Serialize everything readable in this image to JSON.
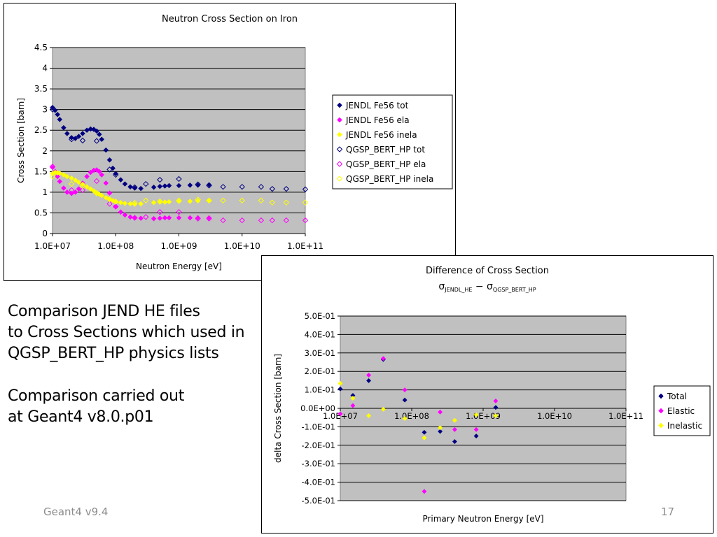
{
  "slide": {
    "text_lines": [
      "Comparison JEND HE files",
      "to Cross Sections which used in",
      "QGSP_BERT_HP physics lists",
      "Comparison carried out",
      "at Geant4 v8.0.p01"
    ],
    "footer_left": "Geant4 v9.4",
    "page_number": "17"
  },
  "chart_data": [
    {
      "type": "scatter",
      "title": "Neutron Cross Section on Iron",
      "xlabel": "Neutron Energy [eV]",
      "ylabel": "Cross Section [barn]",
      "x_scale": "log",
      "xlim": [
        10000000.0,
        100000000000.0
      ],
      "ylim": [
        0,
        4.5
      ],
      "x_tick_labels": [
        "1.0E+07",
        "1.0E+08",
        "1.0E+09",
        "1.0E+10",
        "1.0E+11"
      ],
      "y_tick_labels": [
        "0",
        "0.5",
        "1",
        "1.5",
        "2",
        "2.5",
        "3",
        "3.5",
        "4",
        "4.5"
      ],
      "plot_background": "#c0c0c0",
      "grid": "horizontal",
      "legend_position": "right",
      "series": [
        {
          "name": "JENDL Fe56 tot",
          "marker": "filled-diamond",
          "color": "#000080",
          "x": [
            10000000.0,
            11000000.0,
            12000000.0,
            13000000.0,
            15000000.0,
            17000000.0,
            20000000.0,
            23000000.0,
            26000000.0,
            30000000.0,
            35000000.0,
            40000000.0,
            45000000.0,
            50000000.0,
            55000000.0,
            60000000.0,
            70000000.0,
            80000000.0,
            90000000.0,
            100000000.0,
            120000000.0,
            140000000.0,
            170000000.0,
            200000000.0,
            250000000.0,
            400000000.0,
            500000000.0,
            600000000.0,
            700000000.0,
            1000000000.0,
            1500000000.0,
            2000000000.0,
            3000000000.0
          ],
          "y": [
            3.05,
            2.98,
            2.88,
            2.76,
            2.56,
            2.42,
            2.32,
            2.3,
            2.35,
            2.42,
            2.5,
            2.53,
            2.52,
            2.48,
            2.4,
            2.28,
            2.02,
            1.78,
            1.58,
            1.45,
            1.3,
            1.2,
            1.13,
            1.1,
            1.09,
            1.12,
            1.14,
            1.15,
            1.16,
            1.16,
            1.17,
            1.17,
            1.18
          ]
        },
        {
          "name": "JENDL Fe56 ela",
          "marker": "filled-diamond",
          "color": "#ff00ff",
          "x": [
            10000000.0,
            11000000.0,
            12000000.0,
            13000000.0,
            15000000.0,
            17000000.0,
            20000000.0,
            23000000.0,
            26000000.0,
            30000000.0,
            35000000.0,
            40000000.0,
            45000000.0,
            50000000.0,
            55000000.0,
            60000000.0,
            70000000.0,
            80000000.0,
            90000000.0,
            100000000.0,
            120000000.0,
            140000000.0,
            170000000.0,
            200000000.0,
            250000000.0,
            400000000.0,
            500000000.0,
            600000000.0,
            700000000.0,
            1000000000.0,
            1500000000.0,
            2000000000.0,
            3000000000.0
          ],
          "y": [
            1.6,
            1.5,
            1.38,
            1.26,
            1.1,
            1.0,
            0.97,
            1.0,
            1.08,
            1.22,
            1.38,
            1.48,
            1.53,
            1.54,
            1.5,
            1.42,
            1.22,
            0.98,
            0.8,
            0.66,
            0.52,
            0.45,
            0.4,
            0.38,
            0.37,
            0.36,
            0.37,
            0.38,
            0.38,
            0.38,
            0.38,
            0.38,
            0.38
          ]
        },
        {
          "name": "JENDL Fe56 inela",
          "marker": "filled-diamond",
          "color": "#ffff00",
          "x": [
            10000000.0,
            11000000.0,
            12000000.0,
            13000000.0,
            15000000.0,
            17000000.0,
            20000000.0,
            23000000.0,
            26000000.0,
            30000000.0,
            35000000.0,
            40000000.0,
            45000000.0,
            50000000.0,
            55000000.0,
            60000000.0,
            70000000.0,
            80000000.0,
            90000000.0,
            100000000.0,
            120000000.0,
            140000000.0,
            170000000.0,
            200000000.0,
            250000000.0,
            400000000.0,
            500000000.0,
            600000000.0,
            700000000.0,
            1000000000.0,
            1500000000.0,
            2000000000.0,
            3000000000.0
          ],
          "y": [
            1.45,
            1.48,
            1.47,
            1.46,
            1.42,
            1.38,
            1.34,
            1.29,
            1.24,
            1.19,
            1.13,
            1.08,
            1.03,
            0.99,
            0.95,
            0.92,
            0.87,
            0.83,
            0.8,
            0.78,
            0.75,
            0.73,
            0.72,
            0.71,
            0.72,
            0.75,
            0.76,
            0.76,
            0.77,
            0.78,
            0.78,
            0.79,
            0.79
          ]
        },
        {
          "name": "QGSP_BERT_HP tot",
          "marker": "hollow-diamond",
          "color": "#000080",
          "x": [
            10000000.0,
            20000000.0,
            30000000.0,
            50000000.0,
            80000000.0,
            100000000.0,
            200000000.0,
            300000000.0,
            500000000.0,
            1000000000.0,
            2000000000.0,
            3000000000.0,
            5000000000.0,
            10000000000.0,
            20000000000.0,
            30000000000.0,
            50000000000.0,
            100000000000.0
          ],
          "y": [
            3.0,
            2.28,
            2.25,
            2.24,
            1.55,
            1.42,
            1.12,
            1.2,
            1.3,
            1.32,
            1.19,
            1.16,
            1.13,
            1.13,
            1.13,
            1.08,
            1.08,
            1.07
          ]
        },
        {
          "name": "QGSP_BERT_HP ela",
          "marker": "hollow-diamond",
          "color": "#ff00ff",
          "x": [
            10000000.0,
            20000000.0,
            30000000.0,
            50000000.0,
            80000000.0,
            100000000.0,
            200000000.0,
            300000000.0,
            500000000.0,
            1000000000.0,
            2000000000.0,
            3000000000.0,
            5000000000.0,
            10000000000.0,
            20000000000.0,
            30000000000.0,
            50000000000.0,
            100000000000.0
          ],
          "y": [
            1.62,
            1.05,
            1.05,
            1.27,
            0.72,
            0.65,
            0.38,
            0.4,
            0.52,
            0.52,
            0.36,
            0.36,
            0.32,
            0.32,
            0.32,
            0.32,
            0.32,
            0.32
          ]
        },
        {
          "name": "QGSP_BERT_HP inela",
          "marker": "hollow-diamond",
          "color": "#ffff00",
          "x": [
            10000000.0,
            20000000.0,
            30000000.0,
            50000000.0,
            80000000.0,
            100000000.0,
            200000000.0,
            300000000.0,
            500000000.0,
            1000000000.0,
            2000000000.0,
            3000000000.0,
            5000000000.0,
            10000000000.0,
            20000000000.0,
            30000000000.0,
            50000000000.0,
            100000000000.0
          ],
          "y": [
            1.38,
            1.2,
            1.15,
            0.97,
            0.83,
            0.77,
            0.74,
            0.8,
            0.78,
            0.8,
            0.82,
            0.8,
            0.8,
            0.8,
            0.8,
            0.75,
            0.75,
            0.75
          ]
        }
      ]
    },
    {
      "type": "scatter",
      "title": "Difference of Cross Section",
      "subtitle": {
        "sigma": "σ",
        "sub1": "JENDL_HE",
        "minus": " − ",
        "sub2": "QGSP_BERT_HP"
      },
      "xlabel": "Primary Neutron Energy [eV]",
      "ylabel": "delta Cross Section [barn]",
      "x_scale": "log",
      "xlim": [
        10000000.0,
        100000000000.0
      ],
      "ylim": [
        -0.5,
        0.5
      ],
      "x_tick_labels": [
        "1.0E+07",
        "1.0E+08",
        "1.0E+09",
        "1.0E+10",
        "1.0E+11"
      ],
      "y_tick_labels": [
        "-5.0E-01",
        "-4.0E-01",
        "-3.0E-01",
        "-2.0E-01",
        "-1.0E-01",
        "0.0E+00",
        "1.0E-01",
        "2.0E-01",
        "3.0E-01",
        "4.0E-01",
        "5.0E-01"
      ],
      "plot_background": "#c0c0c0",
      "grid": "horizontal",
      "legend_position": "right",
      "series": [
        {
          "name": "Total",
          "marker": "filled-diamond",
          "color": "#000080",
          "x": [
            10000000.0,
            15000000.0,
            25000000.0,
            40000000.0,
            80000000.0,
            150000000.0,
            250000000.0,
            400000000.0,
            800000000.0,
            1500000000.0
          ],
          "y": [
            0.105,
            0.07,
            0.15,
            0.265,
            0.045,
            -0.13,
            -0.125,
            -0.18,
            -0.15,
            0.005
          ]
        },
        {
          "name": "Elastic",
          "marker": "filled-diamond",
          "color": "#ff00ff",
          "x": [
            10000000.0,
            15000000.0,
            25000000.0,
            40000000.0,
            80000000.0,
            150000000.0,
            250000000.0,
            400000000.0,
            800000000.0,
            1500000000.0
          ],
          "y": [
            -0.03,
            0.015,
            0.18,
            0.27,
            0.1,
            -0.45,
            -0.02,
            -0.115,
            -0.115,
            0.04
          ]
        },
        {
          "name": "Inelastic",
          "marker": "filled-diamond",
          "color": "#ffff00",
          "x": [
            10000000.0,
            15000000.0,
            25000000.0,
            40000000.0,
            80000000.0,
            150000000.0,
            250000000.0,
            400000000.0,
            800000000.0,
            1500000000.0
          ],
          "y": [
            0.135,
            0.055,
            -0.04,
            -0.005,
            -0.055,
            -0.16,
            -0.105,
            -0.065,
            -0.035,
            -0.04
          ]
        }
      ]
    }
  ]
}
